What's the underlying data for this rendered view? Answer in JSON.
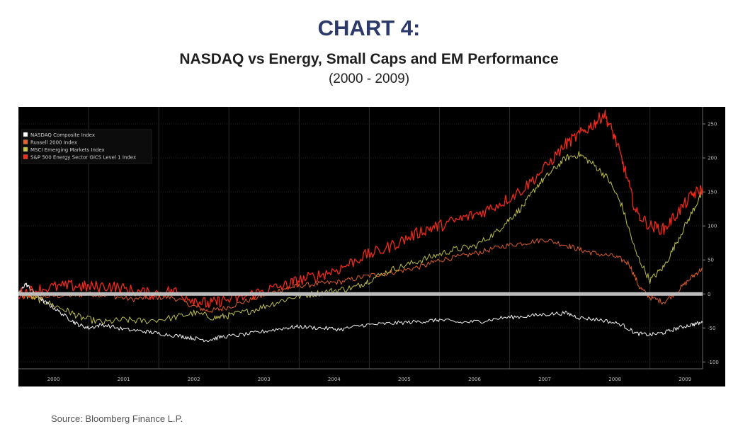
{
  "header": {
    "chart_number": "CHART 4:",
    "title": "NASDAQ vs Energy, Small Caps and EM Performance",
    "subtitle": "(2000 - 2009)"
  },
  "source": "Source: Bloomberg Finance L.P.",
  "chart_data": {
    "type": "line",
    "title": "NASDAQ vs Energy, Small Caps and EM Performance",
    "subtitle": "(2000 - 2009)",
    "xlabel": "",
    "ylabel": "",
    "background": "#000000",
    "grid": true,
    "legend_position": "top-left",
    "x_ticks": [
      "2000",
      "2001",
      "2002",
      "2003",
      "2004",
      "2005",
      "2006",
      "2007",
      "2008",
      "2009"
    ],
    "x_range": [
      2000.0,
      2009.75
    ],
    "y_ticks": [
      250,
      200,
      150,
      100,
      50,
      0,
      -50,
      -100
    ],
    "ylim": [
      -110,
      275
    ],
    "zero_line": 0,
    "series": [
      {
        "name": "NASDAQ Composite Index",
        "color": "#ffffff",
        "points": [
          [
            2000.0,
            0
          ],
          [
            2000.1,
            15
          ],
          [
            2000.2,
            5
          ],
          [
            2000.35,
            -10
          ],
          [
            2000.5,
            -20
          ],
          [
            2000.7,
            -35
          ],
          [
            2000.85,
            -45
          ],
          [
            2001.0,
            -50
          ],
          [
            2001.2,
            -45
          ],
          [
            2001.5,
            -52
          ],
          [
            2001.8,
            -55
          ],
          [
            2002.0,
            -58
          ],
          [
            2002.3,
            -62
          ],
          [
            2002.5,
            -65
          ],
          [
            2002.7,
            -68
          ],
          [
            2002.9,
            -63
          ],
          [
            2003.2,
            -60
          ],
          [
            2003.5,
            -55
          ],
          [
            2003.8,
            -50
          ],
          [
            2004.0,
            -48
          ],
          [
            2004.3,
            -50
          ],
          [
            2004.6,
            -52
          ],
          [
            2004.9,
            -46
          ],
          [
            2005.2,
            -44
          ],
          [
            2005.5,
            -42
          ],
          [
            2005.8,
            -40
          ],
          [
            2006.0,
            -38
          ],
          [
            2006.3,
            -42
          ],
          [
            2006.6,
            -40
          ],
          [
            2006.9,
            -35
          ],
          [
            2007.2,
            -33
          ],
          [
            2007.5,
            -30
          ],
          [
            2007.8,
            -28
          ],
          [
            2008.0,
            -35
          ],
          [
            2008.3,
            -38
          ],
          [
            2008.6,
            -45
          ],
          [
            2008.8,
            -58
          ],
          [
            2009.0,
            -60
          ],
          [
            2009.2,
            -57
          ],
          [
            2009.4,
            -50
          ],
          [
            2009.6,
            -45
          ],
          [
            2009.75,
            -42
          ]
        ]
      },
      {
        "name": "Russell 2000 Index",
        "color": "#e8602a",
        "points": [
          [
            2000.0,
            0
          ],
          [
            2000.2,
            -5
          ],
          [
            2000.5,
            -3
          ],
          [
            2000.8,
            -2
          ],
          [
            2001.0,
            0
          ],
          [
            2001.3,
            -2
          ],
          [
            2001.6,
            -8
          ],
          [
            2001.9,
            -5
          ],
          [
            2002.2,
            -5
          ],
          [
            2002.5,
            -18
          ],
          [
            2002.7,
            -25
          ],
          [
            2002.9,
            -22
          ],
          [
            2003.2,
            -12
          ],
          [
            2003.5,
            -2
          ],
          [
            2003.8,
            8
          ],
          [
            2004.0,
            12
          ],
          [
            2004.3,
            15
          ],
          [
            2004.6,
            18
          ],
          [
            2004.9,
            25
          ],
          [
            2005.2,
            30
          ],
          [
            2005.5,
            35
          ],
          [
            2005.8,
            42
          ],
          [
            2006.0,
            50
          ],
          [
            2006.3,
            55
          ],
          [
            2006.6,
            62
          ],
          [
            2006.9,
            70
          ],
          [
            2007.2,
            75
          ],
          [
            2007.5,
            80
          ],
          [
            2007.8,
            72
          ],
          [
            2008.0,
            65
          ],
          [
            2008.2,
            60
          ],
          [
            2008.5,
            55
          ],
          [
            2008.7,
            45
          ],
          [
            2008.85,
            10
          ],
          [
            2009.0,
            -5
          ],
          [
            2009.2,
            -12
          ],
          [
            2009.4,
            5
          ],
          [
            2009.6,
            25
          ],
          [
            2009.75,
            38
          ]
        ]
      },
      {
        "name": "MSCI Emerging Markets Index",
        "color": "#c8c84a",
        "points": [
          [
            2000.0,
            0
          ],
          [
            2000.2,
            -5
          ],
          [
            2000.4,
            -12
          ],
          [
            2000.7,
            -25
          ],
          [
            2000.9,
            -35
          ],
          [
            2001.2,
            -42
          ],
          [
            2001.5,
            -38
          ],
          [
            2001.8,
            -40
          ],
          [
            2002.2,
            -35
          ],
          [
            2002.5,
            -28
          ],
          [
            2002.8,
            -35
          ],
          [
            2003.0,
            -32
          ],
          [
            2003.3,
            -25
          ],
          [
            2003.6,
            -15
          ],
          [
            2003.9,
            -5
          ],
          [
            2004.2,
            0
          ],
          [
            2004.5,
            5
          ],
          [
            2004.8,
            10
          ],
          [
            2005.0,
            20
          ],
          [
            2005.3,
            35
          ],
          [
            2005.6,
            45
          ],
          [
            2005.9,
            55
          ],
          [
            2006.2,
            65
          ],
          [
            2006.5,
            70
          ],
          [
            2006.8,
            90
          ],
          [
            2007.0,
            110
          ],
          [
            2007.2,
            130
          ],
          [
            2007.4,
            160
          ],
          [
            2007.6,
            180
          ],
          [
            2007.8,
            200
          ],
          [
            2008.0,
            205
          ],
          [
            2008.2,
            190
          ],
          [
            2008.4,
            170
          ],
          [
            2008.6,
            130
          ],
          [
            2008.8,
            60
          ],
          [
            2009.0,
            20
          ],
          [
            2009.2,
            40
          ],
          [
            2009.4,
            80
          ],
          [
            2009.6,
            120
          ],
          [
            2009.75,
            150
          ]
        ]
      },
      {
        "name": "S&P 500 Energy Sector GICS Level 1 Index",
        "color": "#ff2a1a",
        "points": [
          [
            2000.0,
            0
          ],
          [
            2000.2,
            5
          ],
          [
            2000.5,
            10
          ],
          [
            2000.8,
            12
          ],
          [
            2001.0,
            10
          ],
          [
            2001.3,
            12
          ],
          [
            2001.6,
            5
          ],
          [
            2001.9,
            0
          ],
          [
            2002.2,
            5
          ],
          [
            2002.5,
            -8
          ],
          [
            2002.7,
            -15
          ],
          [
            2002.9,
            -10
          ],
          [
            2003.2,
            -5
          ],
          [
            2003.5,
            5
          ],
          [
            2003.8,
            12
          ],
          [
            2004.0,
            20
          ],
          [
            2004.3,
            28
          ],
          [
            2004.6,
            38
          ],
          [
            2004.9,
            55
          ],
          [
            2005.2,
            65
          ],
          [
            2005.5,
            80
          ],
          [
            2005.8,
            95
          ],
          [
            2006.0,
            100
          ],
          [
            2006.3,
            110
          ],
          [
            2006.6,
            120
          ],
          [
            2006.9,
            135
          ],
          [
            2007.2,
            155
          ],
          [
            2007.5,
            185
          ],
          [
            2007.8,
            220
          ],
          [
            2008.0,
            235
          ],
          [
            2008.2,
            250
          ],
          [
            2008.35,
            265
          ],
          [
            2008.5,
            230
          ],
          [
            2008.65,
            180
          ],
          [
            2008.8,
            120
          ],
          [
            2009.0,
            100
          ],
          [
            2009.2,
            95
          ],
          [
            2009.4,
            120
          ],
          [
            2009.6,
            145
          ],
          [
            2009.75,
            155
          ]
        ]
      }
    ]
  }
}
